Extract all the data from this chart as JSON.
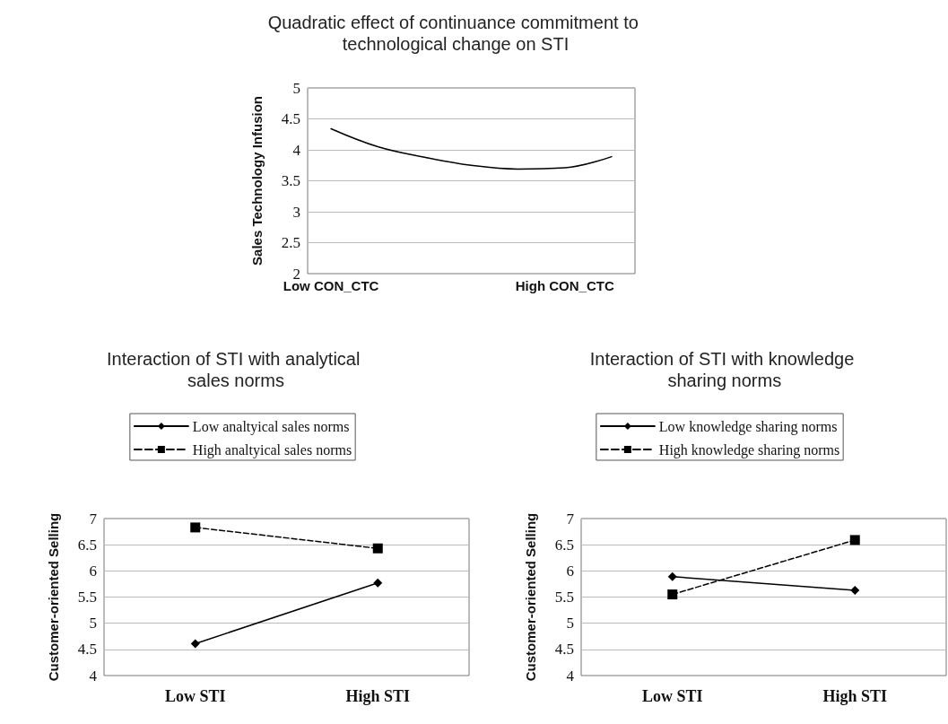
{
  "chart_data": [
    {
      "type": "line",
      "title": "Quadratic effect of continuance commitment to technological change on STI",
      "ylabel": "Sales Technology Infusion",
      "categories": [
        "Low CON_CTC",
        null,
        null,
        null,
        null,
        "High CON_CTC",
        null
      ],
      "series": [
        {
          "color": "#000000",
          "values": [
            4.34,
            4.05,
            3.88,
            3.75,
            3.69,
            3.71,
            3.89
          ],
          "marker": "none",
          "line_style": "solid"
        }
      ],
      "ylim": [
        2,
        5
      ],
      "yticks": [
        2,
        2.5,
        3,
        3.5,
        4,
        4.5,
        5
      ],
      "grid": "y",
      "legend": false
    },
    {
      "type": "line",
      "title": "Interaction of STI with analytical sales norms",
      "ylabel": "Customer-oriented Selling",
      "categories": [
        "Low STI",
        "High STI"
      ],
      "series": [
        {
          "name": "Low analtyical sales norms",
          "color": "#000000",
          "values": [
            4.61,
            5.77
          ],
          "marker": "diamond",
          "line_style": "solid"
        },
        {
          "name": "High analtyical sales norms",
          "color": "#000000",
          "values": [
            6.83,
            6.43
          ],
          "marker": "square",
          "line_style": "dashed"
        }
      ],
      "ylim": [
        4,
        7
      ],
      "yticks": [
        4,
        4.5,
        5,
        5.5,
        6,
        6.5,
        7
      ],
      "grid": "y",
      "legend": "top"
    },
    {
      "type": "line",
      "title": "Interaction of STI with knowledge sharing norms",
      "ylabel": "Customer-oriented Selling",
      "categories": [
        "Low STI",
        "High STI"
      ],
      "series": [
        {
          "name": "Low knowledge sharing norms",
          "color": "#000000",
          "values": [
            5.89,
            5.63
          ],
          "marker": "diamond",
          "line_style": "solid"
        },
        {
          "name": "High knowledge sharing norms",
          "color": "#000000",
          "values": [
            5.55,
            6.59
          ],
          "marker": "square",
          "line_style": "dashed"
        }
      ],
      "ylim": [
        4,
        7
      ],
      "yticks": [
        4,
        4.5,
        5,
        5.5,
        6,
        6.5,
        7
      ],
      "grid": "y",
      "legend": "top"
    }
  ]
}
